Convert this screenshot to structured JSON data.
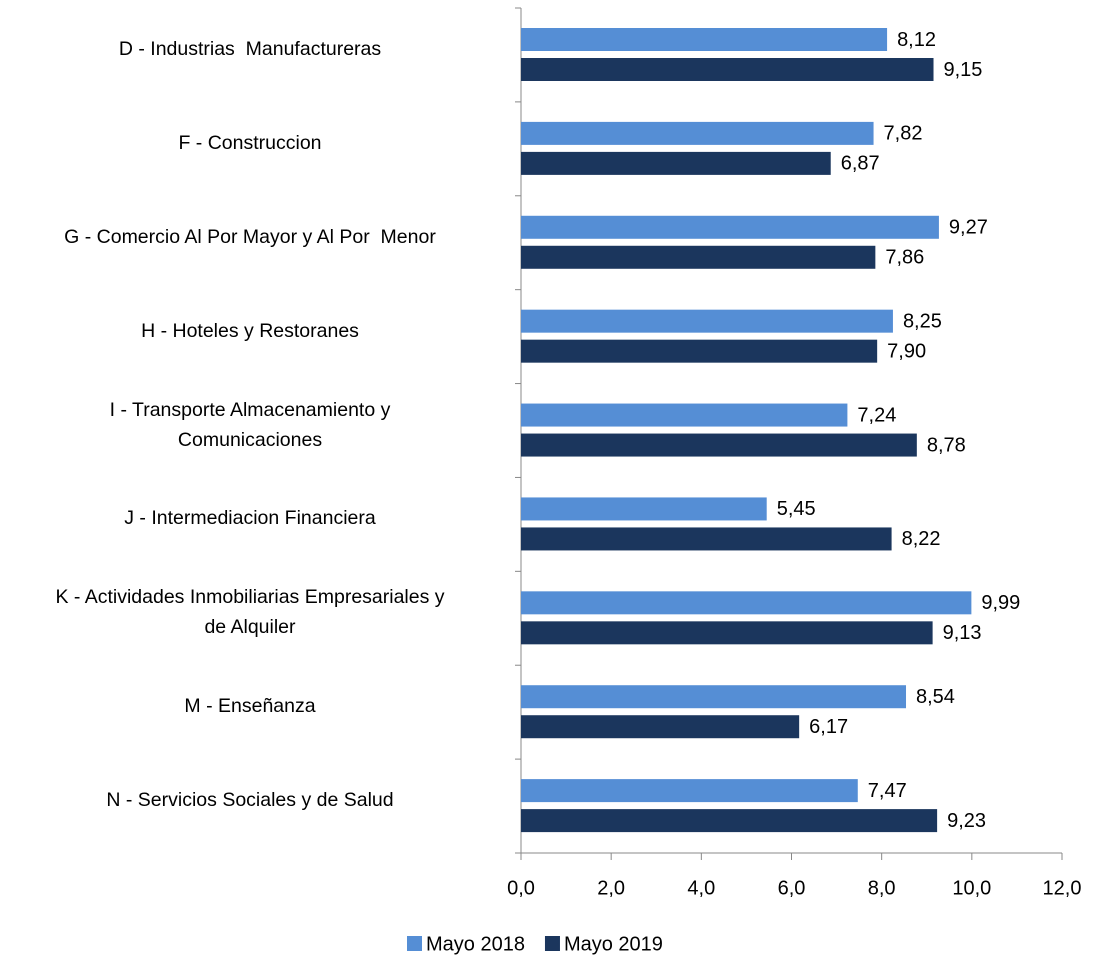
{
  "chart_data": {
    "type": "bar",
    "orientation": "horizontal",
    "categories": [
      "D - Industrias  Manufactureras",
      "F - Construccion",
      "G - Comercio Al Por Mayor y Al Por  Menor",
      "H - Hoteles y Restoranes",
      "I - Transporte Almacenamiento y\nComunicaciones",
      "J - Intermediacion Financiera",
      "K - Actividades Inmobiliarias Empresariales y\nde Alquiler",
      "M - Enseñanza",
      "N - Servicios Sociales y de Salud"
    ],
    "series": [
      {
        "name": "Mayo 2018",
        "color": "#558ED5",
        "values": [
          8.12,
          7.82,
          9.27,
          8.25,
          7.24,
          5.45,
          9.99,
          8.54,
          7.47
        ],
        "value_labels": [
          "8,12",
          "7,82",
          "9,27",
          "8,25",
          "7,24",
          "5,45",
          "9,99",
          "8,54",
          "7,47"
        ]
      },
      {
        "name": "Mayo 2019",
        "color": "#1B365D",
        "values": [
          9.15,
          6.87,
          7.86,
          7.9,
          8.78,
          8.22,
          9.13,
          6.17,
          9.23
        ],
        "value_labels": [
          "9,15",
          "6,87",
          "7,86",
          "7,90",
          "8,78",
          "8,22",
          "9,13",
          "6,17",
          "9,23"
        ]
      }
    ],
    "xlim": [
      0,
      12
    ],
    "xticks": [
      {
        "value": 0,
        "label": "0,0"
      },
      {
        "value": 2,
        "label": "2,0"
      },
      {
        "value": 4,
        "label": "4,0"
      },
      {
        "value": 6,
        "label": "6,0"
      },
      {
        "value": 8,
        "label": "8,0"
      },
      {
        "value": 10,
        "label": "10,0"
      },
      {
        "value": 12,
        "label": "12,0"
      }
    ],
    "legend": "bottom"
  }
}
